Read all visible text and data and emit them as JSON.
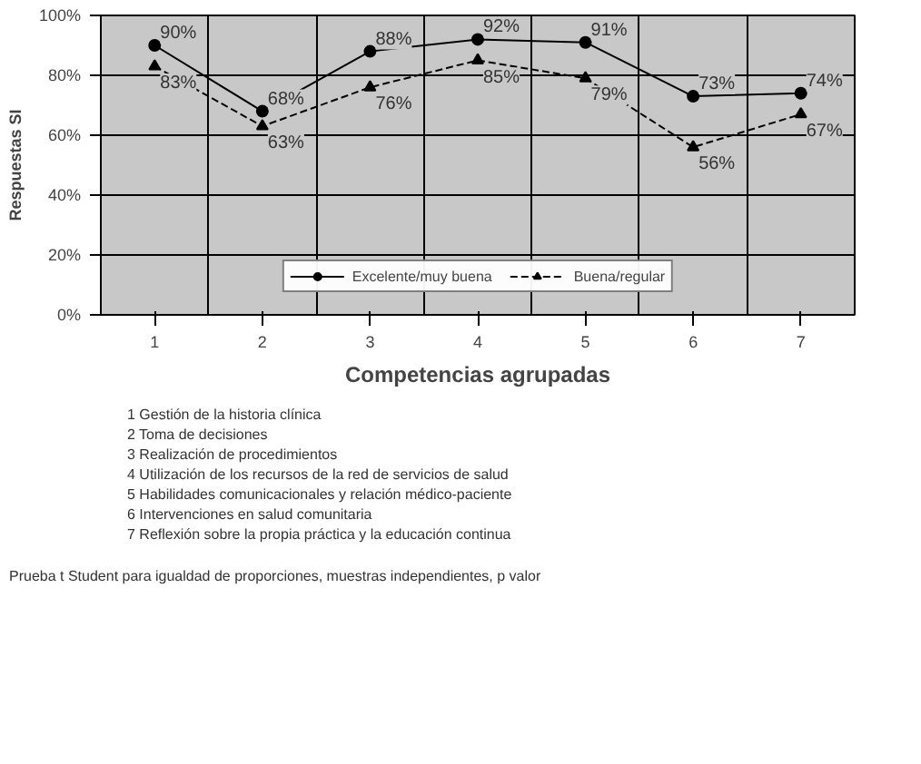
{
  "chart_data": {
    "type": "line",
    "xlabel": "Competencias agrupadas",
    "ylabel": "Respuestas SI",
    "categories": [
      "1",
      "2",
      "3",
      "4",
      "5",
      "6",
      "7"
    ],
    "series": [
      {
        "name": "Excelente/muy buena",
        "color": "#000000",
        "values": [
          90,
          68,
          88,
          92,
          91,
          73,
          74
        ],
        "value_labels": [
          "90%",
          "68%",
          "88%",
          "92%",
          "91%",
          "73%",
          "74%"
        ],
        "marker": "circle",
        "line_style": "solid"
      },
      {
        "name": "Buena/regular",
        "color": "#000000",
        "values": [
          83,
          63,
          76,
          85,
          79,
          56,
          67
        ],
        "value_labels": [
          "83%",
          "63%",
          "76%",
          "85%",
          "79%",
          "56%",
          "67%"
        ],
        "marker": "triangle",
        "line_style": "dashed"
      }
    ],
    "ylim": [
      0,
      100
    ],
    "yticks": [
      {
        "value": 0,
        "label": "0%"
      },
      {
        "value": 20,
        "label": "20%"
      },
      {
        "value": 40,
        "label": "40%"
      },
      {
        "value": 60,
        "label": "60%"
      },
      {
        "value": 80,
        "label": "80%"
      },
      {
        "value": 100,
        "label": "100%"
      }
    ],
    "grid": true,
    "legend": "bottom",
    "data_labels": true,
    "annotations": [
      "1 Gestión de la historia clínica",
      "2 Toma de decisiones",
      "3 Realización de procedimientos",
      "4 Utilización de los recursos de la red de servicios de salud",
      "5 Habilidades comunicacionales y relación médico-paciente",
      "6 Intervenciones en salud comunitaria",
      "7 Reflexión sobre la propia práctica y la educación continua",
      "Prueba t Student para igualdad de proporciones, muestras independientes, p valor"
    ]
  }
}
